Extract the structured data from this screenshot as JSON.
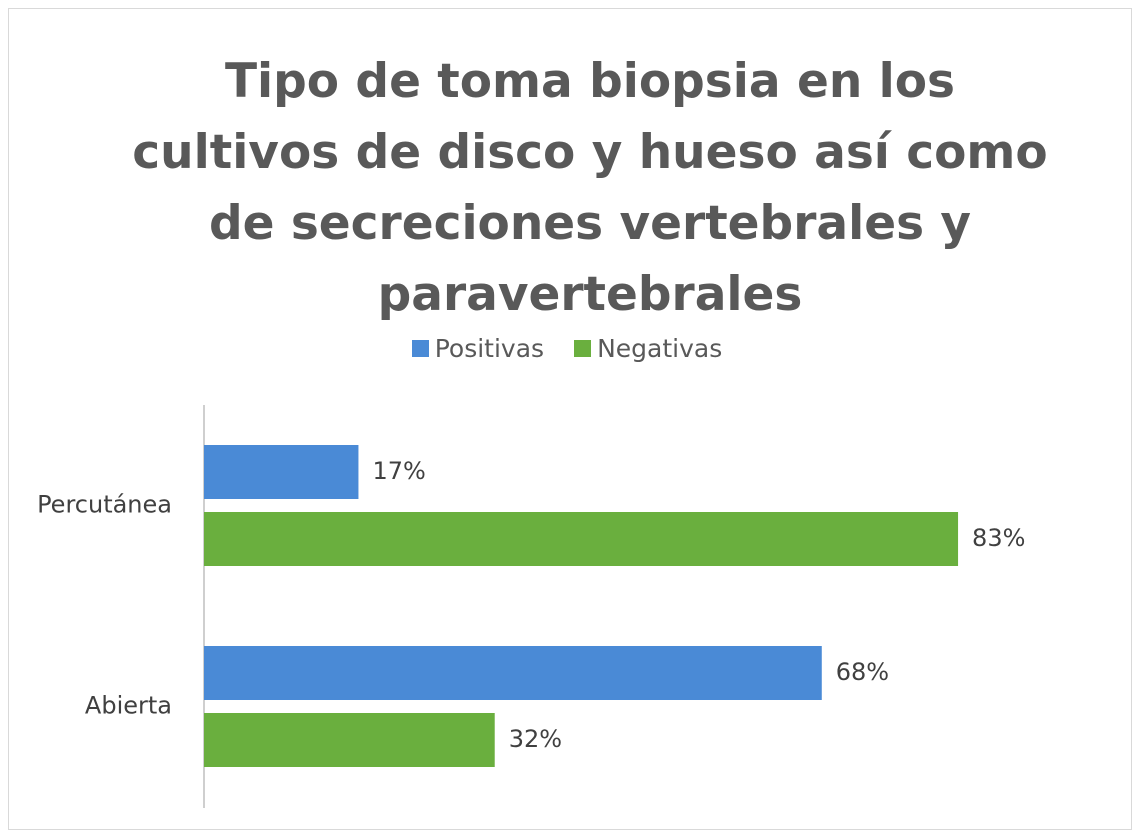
{
  "chart_data": {
    "type": "bar",
    "orientation": "horizontal",
    "title": "Tipo de toma biopsia en los cultivos de disco y hueso así como de secreciones vertebrales y paravertebrales",
    "categories": [
      "Percutánea",
      "Abierta"
    ],
    "series": [
      {
        "name": "Positivas",
        "color": "#4a8ad6",
        "values": [
          17,
          68
        ],
        "value_labels": [
          "17%",
          "68%"
        ]
      },
      {
        "name": "Negativas",
        "color": "#6aaf3e",
        "values": [
          83,
          32
        ],
        "value_labels": [
          "83%",
          "32%"
        ]
      }
    ],
    "legend": "top"
  }
}
